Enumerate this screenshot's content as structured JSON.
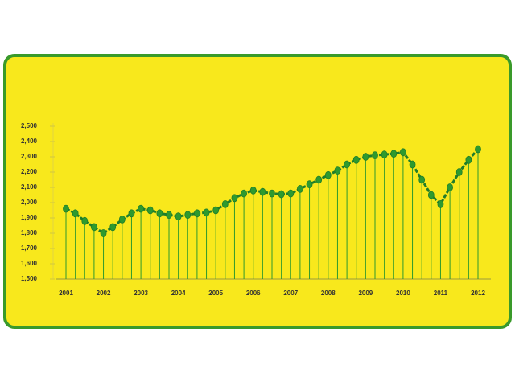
{
  "chart_data": {
    "type": "line",
    "categories": [
      "2001",
      null,
      null,
      null,
      "2002",
      null,
      null,
      null,
      "2003",
      null,
      null,
      null,
      "2004",
      null,
      null,
      null,
      "2005",
      null,
      null,
      null,
      "2006",
      null,
      null,
      null,
      "2007",
      null,
      null,
      null,
      "2008",
      null,
      null,
      null,
      "2009",
      null,
      null,
      null,
      "2010",
      null,
      null,
      null,
      "2011",
      null,
      null,
      null,
      "2012"
    ],
    "values": [
      1960,
      1930,
      1880,
      1840,
      1800,
      1840,
      1890,
      1930,
      1960,
      1950,
      1930,
      1920,
      1910,
      1920,
      1930,
      1935,
      1950,
      1990,
      2030,
      2060,
      2080,
      2070,
      2060,
      2055,
      2060,
      2090,
      2120,
      2150,
      2180,
      2210,
      2250,
      2280,
      2300,
      2310,
      2315,
      2320,
      2330,
      2250,
      2150,
      2050,
      1990,
      2100,
      2200,
      2280,
      2350
    ],
    "color": "#2e9a2e",
    "ylim": [
      1500,
      2500
    ],
    "yticks": [
      {
        "value": 1500,
        "label": "1,500"
      },
      {
        "value": 1600,
        "label": "1,600"
      },
      {
        "value": 1700,
        "label": "1,700"
      },
      {
        "value": 1800,
        "label": "1,800"
      },
      {
        "value": 1900,
        "label": "1,900"
      },
      {
        "value": 2000,
        "label": "2,000"
      },
      {
        "value": 2100,
        "label": "2,100"
      },
      {
        "value": 2200,
        "label": "2,200"
      },
      {
        "value": 2300,
        "label": "2,300"
      },
      {
        "value": 2400,
        "label": "2,400"
      },
      {
        "value": 2500,
        "label": "2,500"
      }
    ],
    "grid": false
  }
}
